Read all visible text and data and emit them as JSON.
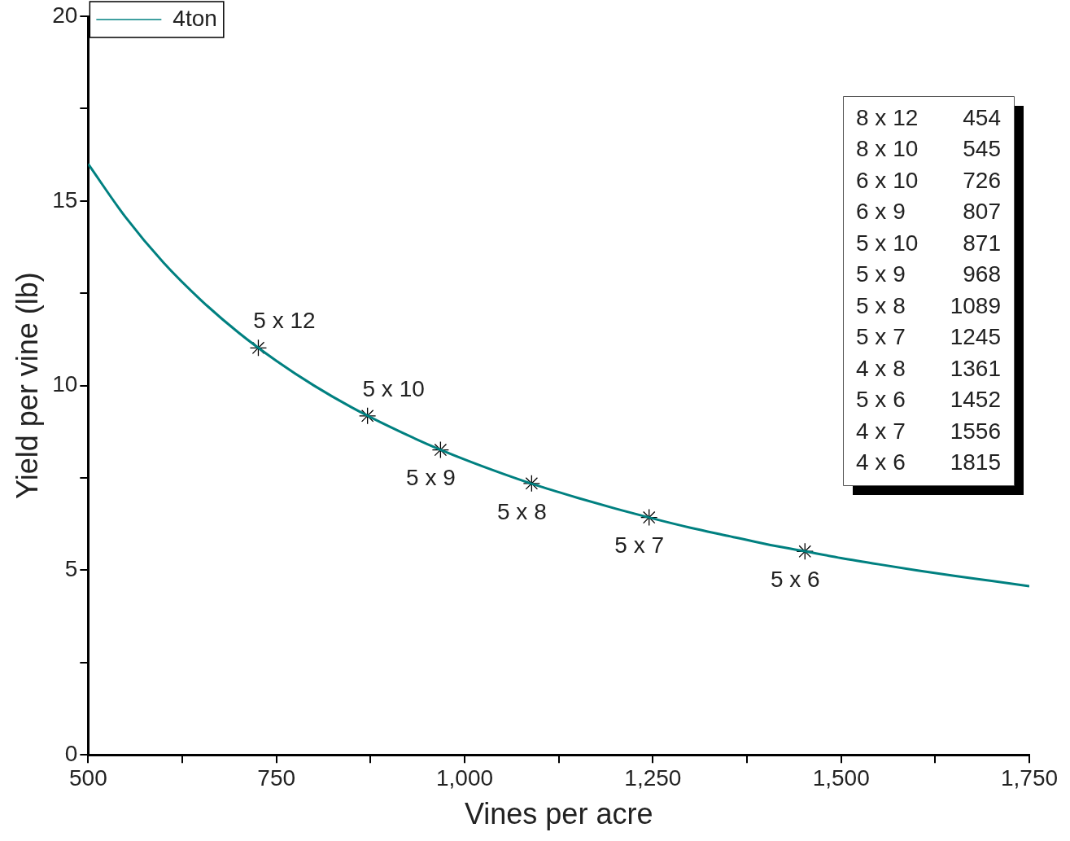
{
  "chart_data": {
    "type": "line",
    "xlabel": "Vines per acre",
    "ylabel": "Yield per vine (lb)",
    "xlim": [
      500,
      1750
    ],
    "ylim": [
      0,
      20
    ],
    "xticks": [
      {
        "value": 500,
        "label": "500"
      },
      {
        "value": 625,
        "label": null
      },
      {
        "value": 750,
        "label": "750"
      },
      {
        "value": 875,
        "label": null
      },
      {
        "value": 1000,
        "label": "1,000"
      },
      {
        "value": 1125,
        "label": null
      },
      {
        "value": 1250,
        "label": "1,250"
      },
      {
        "value": 1375,
        "label": null
      },
      {
        "value": 1500,
        "label": "1,500"
      },
      {
        "value": 1625,
        "label": null
      },
      {
        "value": 1750,
        "label": "1,750"
      }
    ],
    "yticks": [
      0,
      {
        "value": 2.5,
        "label": null
      },
      5,
      {
        "value": 7.5,
        "label": null
      },
      10,
      {
        "value": 12.5,
        "label": null
      },
      15,
      {
        "value": 17.5,
        "label": null
      },
      20
    ],
    "legend": "top left",
    "grid": false,
    "series": [
      {
        "name": "4ton",
        "color": "#008080",
        "marker": "none",
        "x": [
          500,
          550,
          600,
          650,
          700,
          750,
          800,
          850,
          900,
          950,
          1000,
          1050,
          1100,
          1150,
          1200,
          1250,
          1300,
          1350,
          1400,
          1450,
          1500,
          1550,
          1600,
          1650,
          1700,
          1750
        ],
        "values": [
          16,
          14.55,
          13.33,
          12.31,
          11.43,
          10.67,
          10,
          9.41,
          8.89,
          8.42,
          8,
          7.62,
          7.27,
          6.96,
          6.67,
          6.4,
          6.15,
          5.93,
          5.71,
          5.52,
          5.33,
          5.16,
          5,
          4.85,
          4.71,
          4.57
        ]
      },
      {
        "type": "scatter",
        "color": "#000000",
        "marker": "cross",
        "x": [
          726,
          871,
          968,
          1089,
          1245,
          1452
        ],
        "values": [
          11.02,
          9.18,
          8.26,
          7.35,
          6.43,
          5.51
        ]
      }
    ],
    "annotations": [
      {
        "text": "5 x 12",
        "x": 726,
        "y": 11.02
      },
      {
        "text": "5 x 10",
        "x": 871,
        "y": 9.18
      },
      {
        "text": "5 x 9",
        "x": 968,
        "y": 8.26
      },
      {
        "text": "5 x 8",
        "x": 1089,
        "y": 7.35
      },
      {
        "text": "5 x 7",
        "x": 1245,
        "y": 6.43
      },
      {
        "text": "5 x 6",
        "x": 1452,
        "y": 5.51
      },
      "8 x 12",
      "454",
      "8 x 10",
      "545",
      "6 x 10",
      "726",
      "6 x 9",
      "807",
      "5 x 10",
      "871",
      "5 x 9",
      "968",
      "5 x 8",
      "1089",
      "5 x 7",
      "1245",
      "4 x 8",
      "1361",
      "5 x 6",
      "1452",
      "4 x 7",
      "1556",
      "4 x 6",
      "1815"
    ]
  }
}
